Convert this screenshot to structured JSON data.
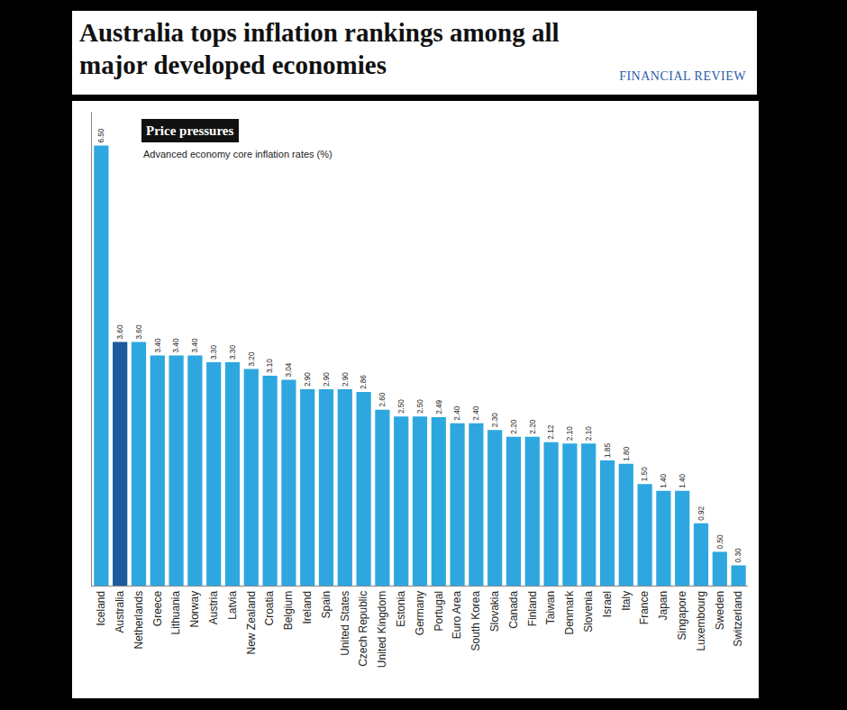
{
  "header": {
    "title": "Australia tops inflation rankings among all major developed economies",
    "source": "FINANCIAL REVIEW"
  },
  "chart_data": {
    "type": "bar",
    "title": "Price pressures",
    "subtitle": "Advanced economy core inflation rates (%)",
    "categories": [
      "Iceland",
      "Australia",
      "Netherlands",
      "Greece",
      "Lithuania",
      "Norway",
      "Austria",
      "Latvia",
      "New Zealand",
      "Croatia",
      "Belgium",
      "Ireland",
      "Spain",
      "United States",
      "Czech Republic",
      "United Kingdom",
      "Estonia",
      "Germany",
      "Portugal",
      "Euro Area",
      "South Korea",
      "Slovakia",
      "Canada",
      "Finland",
      "Taiwan",
      "Denmark",
      "Slovenia",
      "Israel",
      "Italy",
      "France",
      "Japan",
      "Singapore",
      "Luxembourg",
      "Sweden",
      "Switzerland"
    ],
    "values": [
      6.5,
      3.6,
      3.6,
      3.4,
      3.4,
      3.4,
      3.3,
      3.3,
      3.2,
      3.1,
      3.04,
      2.9,
      2.9,
      2.9,
      2.86,
      2.6,
      2.5,
      2.5,
      2.49,
      2.4,
      2.4,
      2.3,
      2.2,
      2.2,
      2.12,
      2.1,
      2.1,
      1.85,
      1.8,
      1.5,
      1.4,
      1.4,
      0.92,
      0.5,
      0.3
    ],
    "value_labels": [
      "6.50",
      "3.60",
      "3.60",
      "3.40",
      "3.40",
      "3.40",
      "3.30",
      "3.30",
      "3.20",
      "3.10",
      "3.04",
      "2.90",
      "2.90",
      "2.90",
      "2.86",
      "2.60",
      "2.50",
      "2.50",
      "2.49",
      "2.40",
      "2.40",
      "2.30",
      "2.20",
      "2.20",
      "2.12",
      "2.10",
      "2.10",
      "1.85",
      "1.80",
      "1.50",
      "1.40",
      "1.40",
      "0.92",
      "0.50",
      "0.30"
    ],
    "colors": [
      "#2ea7e0",
      "#1d5a9e",
      "#2ea7e0",
      "#2ea7e0",
      "#2ea7e0",
      "#2ea7e0",
      "#2ea7e0",
      "#2ea7e0",
      "#2ea7e0",
      "#2ea7e0",
      "#2ea7e0",
      "#2ea7e0",
      "#2ea7e0",
      "#2ea7e0",
      "#2ea7e0",
      "#2ea7e0",
      "#2ea7e0",
      "#2ea7e0",
      "#2ea7e0",
      "#2ea7e0",
      "#2ea7e0",
      "#2ea7e0",
      "#2ea7e0",
      "#2ea7e0",
      "#2ea7e0",
      "#2ea7e0",
      "#2ea7e0",
      "#2ea7e0",
      "#2ea7e0",
      "#2ea7e0",
      "#2ea7e0",
      "#2ea7e0",
      "#2ea7e0",
      "#2ea7e0",
      "#2ea7e0"
    ],
    "ylim": [
      0,
      7
    ],
    "grid": false,
    "data_labels": true,
    "tick_labels": "x"
  }
}
